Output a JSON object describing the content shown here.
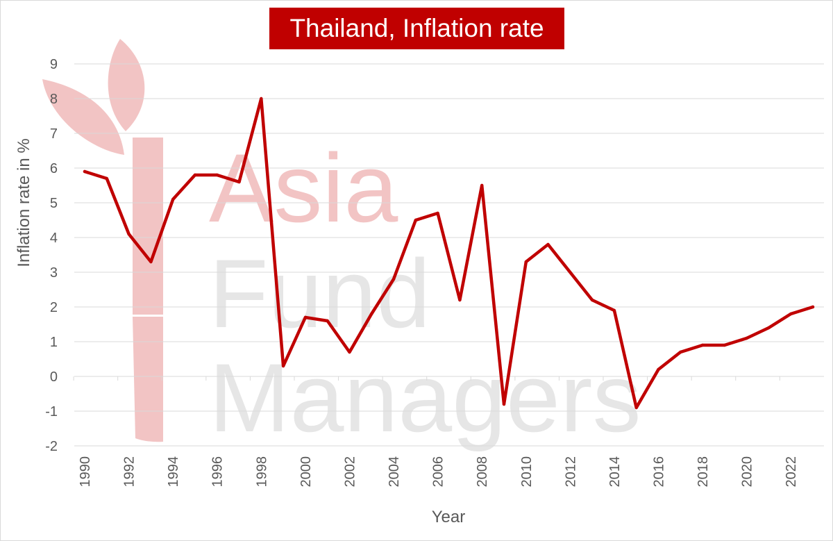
{
  "watermark": {
    "line1": "Asia",
    "line2": "Fund",
    "line3": "Managers",
    "color_red": "#f2c4c4",
    "color_grey": "#e6e6e6"
  },
  "chart_data": {
    "type": "line",
    "title": "Thailand, Inflation rate",
    "xlabel": "Year",
    "ylabel": "Inflation rate in %",
    "ylim": [
      -2,
      9
    ],
    "yticks": [
      -2,
      -1,
      0,
      1,
      2,
      3,
      4,
      5,
      6,
      7,
      8,
      9
    ],
    "xlim": [
      1990,
      2023
    ],
    "xtick_labels": [
      1990,
      1992,
      1994,
      1996,
      1998,
      2000,
      2002,
      2004,
      2006,
      2008,
      2010,
      2012,
      2014,
      2016,
      2018,
      2020,
      2022
    ],
    "grid": true,
    "legend": "none",
    "series": [
      {
        "color": "#c00000",
        "x": [
          1990,
          1991,
          1992,
          1993,
          1994,
          1995,
          1996,
          1997,
          1998,
          1999,
          2000,
          2001,
          2002,
          2003,
          2004,
          2005,
          2006,
          2007,
          2008,
          2009,
          2010,
          2011,
          2012,
          2013,
          2014,
          2015,
          2016,
          2017,
          2018,
          2019,
          2020,
          2021,
          2022,
          2023
        ],
        "values": [
          5.9,
          5.7,
          4.1,
          3.3,
          5.1,
          5.8,
          5.8,
          5.6,
          8.0,
          0.3,
          1.7,
          1.6,
          0.7,
          1.8,
          2.8,
          4.5,
          4.7,
          2.2,
          5.5,
          -0.8,
          3.3,
          3.8,
          3.0,
          2.2,
          1.9,
          -0.9,
          0.2,
          0.7,
          0.9,
          0.9,
          1.1,
          1.4,
          1.8,
          2.0
        ]
      }
    ]
  }
}
